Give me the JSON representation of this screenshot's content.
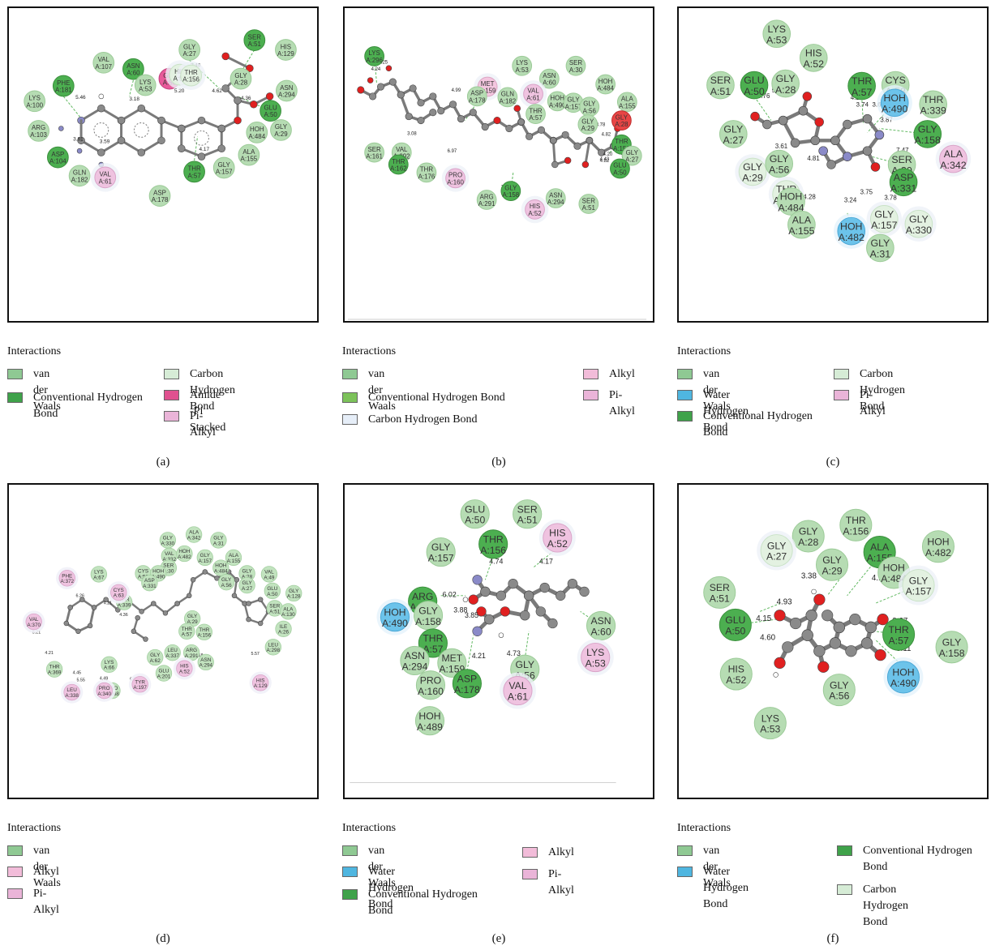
{
  "colors": {
    "van_der_waals": "#8fc993",
    "conventional_hbond": "#3fa24a",
    "carbon_hbond": "#d6ecd6",
    "water_hbond": "#4fb6e0",
    "amide_pi": "#e0508f",
    "pi_alkyl": "#eab4d8",
    "alkyl": "#f2bcd9",
    "unfavorable": "#e84a4a",
    "atom_c": "#8a8a8a",
    "atom_o": "#e02020",
    "atom_n": "#8a8ac8"
  },
  "legend_title": "Interactions",
  "legend_items": {
    "vdw": "van der Waals",
    "chb": "Carbon Hydrogen Bond",
    "conv": "Conventional Hydrogen Bond",
    "amide": "Amide -Pi Stacked",
    "pialkyl": "Pi-Alkyl",
    "alkyl": "Alkyl",
    "water": "Water Hydrogen Bond"
  },
  "captions": {
    "a": "(a)",
    "b": "(b)",
    "c": "(c)",
    "d": "(d)",
    "e": "(e)",
    "f": "(f)"
  },
  "panels": {
    "a": {
      "residues": [
        {
          "n": "SER",
          "i": "A:51",
          "t": "conv"
        },
        {
          "n": "HIS",
          "i": "A:129",
          "t": "vdw"
        },
        {
          "n": "GLY",
          "i": "A:27",
          "t": "vdw"
        },
        {
          "n": "GLY",
          "i": "A:28",
          "t": "vdw"
        },
        {
          "n": "ASN",
          "i": "A:294",
          "t": "vdw"
        },
        {
          "n": "GLU",
          "i": "A:50",
          "t": "conv"
        },
        {
          "n": "GLY",
          "i": "A:29",
          "t": "vdw"
        },
        {
          "n": "HOH",
          "i": "A:484",
          "t": "vdw"
        },
        {
          "n": "ALA",
          "i": "A:155",
          "t": "vdw"
        },
        {
          "n": "GLY",
          "i": "A:157",
          "t": "vdw"
        },
        {
          "n": "THR",
          "i": "A:57",
          "t": "conv"
        },
        {
          "n": "ASP",
          "i": "A:178",
          "t": "vdw"
        },
        {
          "n": "VAL",
          "i": "A:107",
          "t": "vdw"
        },
        {
          "n": "ASN",
          "i": "A:60",
          "t": "conv"
        },
        {
          "n": "LYS",
          "i": "A:53",
          "t": "vdw"
        },
        {
          "n": "GLY",
          "i": "A:56",
          "t": "amide"
        },
        {
          "n": "HIS",
          "i": "A:52",
          "t": "chb"
        },
        {
          "n": "THR",
          "i": "A:156",
          "t": "chb"
        },
        {
          "n": "PHE",
          "i": "A:181",
          "t": "conv"
        },
        {
          "n": "LYS",
          "i": "A:100",
          "t": "vdw"
        },
        {
          "n": "ARG",
          "i": "A:103",
          "t": "vdw"
        },
        {
          "n": "ASP",
          "i": "A:104",
          "t": "conv"
        },
        {
          "n": "GLN",
          "i": "A:182",
          "t": "vdw"
        },
        {
          "n": "VAL",
          "i": "A:61",
          "t": "pialkyl"
        }
      ],
      "distances": [
        "3.40",
        "4.62",
        "4.36",
        "5.20",
        "4.17",
        "5.46",
        "3.81",
        "3.59",
        "3.18"
      ]
    },
    "b": {
      "residues": [
        {
          "n": "LYS",
          "i": "A:296",
          "t": "conv"
        },
        {
          "n": "LYS",
          "i": "A:53",
          "t": "vdw"
        },
        {
          "n": "SER",
          "i": "A:30",
          "t": "vdw"
        },
        {
          "n": "ASN",
          "i": "A:60",
          "t": "vdw"
        },
        {
          "n": "MET",
          "i": "A:159",
          "t": "alkyl"
        },
        {
          "n": "ASP",
          "i": "A:178",
          "t": "vdw"
        },
        {
          "n": "GLN",
          "i": "A:182",
          "t": "vdw"
        },
        {
          "n": "VAL",
          "i": "A:61",
          "t": "pialkyl"
        },
        {
          "n": "HOH",
          "i": "A:484",
          "t": "vdw"
        },
        {
          "n": "HOH",
          "i": "A:490",
          "t": "vdw"
        },
        {
          "n": "GLY",
          "i": "A:157",
          "t": "vdw"
        },
        {
          "n": "GLY",
          "i": "A:56",
          "t": "vdw"
        },
        {
          "n": "ALA",
          "i": "A:155",
          "t": "vdw"
        },
        {
          "n": "GLY",
          "i": "A:28",
          "t": "unfav"
        },
        {
          "n": "THR",
          "i": "A:57",
          "t": "vdw"
        },
        {
          "n": "GLY",
          "i": "A:29",
          "t": "vdw"
        },
        {
          "n": "SER",
          "i": "A:161",
          "t": "vdw"
        },
        {
          "n": "VAL",
          "i": "A:292",
          "t": "vdw"
        },
        {
          "n": "THR",
          "i": "A:162",
          "t": "conv"
        },
        {
          "n": "THR",
          "i": "A:176",
          "t": "vdw"
        },
        {
          "n": "PRO",
          "i": "A:160",
          "t": "pialkyl"
        },
        {
          "n": "GLY",
          "i": "A:158",
          "t": "conv"
        },
        {
          "n": "ARG",
          "i": "A:291",
          "t": "vdw"
        },
        {
          "n": "HIS",
          "i": "A:52",
          "t": "pialkyl"
        },
        {
          "n": "ASN",
          "i": "A:294",
          "t": "vdw"
        },
        {
          "n": "SER",
          "i": "A:51",
          "t": "vdw"
        },
        {
          "n": "THR",
          "i": "A:156",
          "t": "conv"
        },
        {
          "n": "GLY",
          "i": "A:27",
          "t": "vdw"
        },
        {
          "n": "GLU",
          "i": "A:50",
          "t": "conv"
        }
      ],
      "distances": [
        "4.25",
        "4.24",
        "4.99",
        "3.08",
        "6.97",
        "4.82",
        "3.78",
        "3.93",
        "4.82",
        "4.43",
        "4.20"
      ]
    },
    "c": {
      "residues": [
        {
          "n": "LYS",
          "i": "A:53",
          "t": "vdw"
        },
        {
          "n": "HIS",
          "i": "A:52",
          "t": "vdw"
        },
        {
          "n": "SER",
          "i": "A:51",
          "t": "vdw"
        },
        {
          "n": "GLU",
          "i": "A:50",
          "t": "conv"
        },
        {
          "n": "GLY",
          "i": "A:28",
          "t": "vdw"
        },
        {
          "n": "THR",
          "i": "A:57",
          "t": "conv"
        },
        {
          "n": "CYS",
          "i": "A:58",
          "t": "vdw"
        },
        {
          "n": "HOH",
          "i": "A:490",
          "t": "water"
        },
        {
          "n": "THR",
          "i": "A:339",
          "t": "vdw"
        },
        {
          "n": "GLY",
          "i": "A:27",
          "t": "vdw"
        },
        {
          "n": "GLY",
          "i": "A:158",
          "t": "conv"
        },
        {
          "n": "ALA",
          "i": "A:342",
          "t": "pialkyl"
        },
        {
          "n": "GLY",
          "i": "A:29",
          "t": "chb"
        },
        {
          "n": "GLY",
          "i": "A:56",
          "t": "vdw"
        },
        {
          "n": "SER",
          "i": "A:30",
          "t": "vdw"
        },
        {
          "n": "ASP",
          "i": "A:331",
          "t": "conv"
        },
        {
          "n": "THR",
          "i": "A:156",
          "t": "chb"
        },
        {
          "n": "HOH",
          "i": "A:484",
          "t": "vdw"
        },
        {
          "n": "ALA",
          "i": "A:155",
          "t": "vdw"
        },
        {
          "n": "HOH",
          "i": "A:482",
          "t": "water"
        },
        {
          "n": "GLY",
          "i": "A:157",
          "t": "chb"
        },
        {
          "n": "GLY",
          "i": "A:330",
          "t": "chb"
        },
        {
          "n": "GLY",
          "i": "A:31",
          "t": "vdw"
        }
      ],
      "distances": [
        "3.76",
        "5.28",
        "2.38",
        "4.22",
        "3.74",
        "3.63",
        "3.87",
        "3.61",
        "4.81",
        "7.47",
        "4.05",
        "3.75",
        "3.78",
        "4.28",
        "3.24"
      ]
    },
    "d": {
      "residues": [
        {
          "n": "GLY",
          "i": "A:330"
        },
        {
          "n": "ALA",
          "i": "A:342"
        },
        {
          "n": "GLY",
          "i": "A:31"
        },
        {
          "n": "VAL",
          "i": "A:332"
        },
        {
          "n": "HOH",
          "i": "A:482"
        },
        {
          "n": "GLY",
          "i": "A:157"
        },
        {
          "n": "ALA",
          "i": "A:155"
        },
        {
          "n": "SER",
          "i": "A:30"
        },
        {
          "n": "HOH",
          "i": "A:484"
        },
        {
          "n": "LYS",
          "i": "A:67"
        },
        {
          "n": "CYS",
          "i": "A:58"
        },
        {
          "n": "HOH",
          "i": "A:490"
        },
        {
          "n": "ASP",
          "i": "A:331"
        },
        {
          "n": "GLY",
          "i": "A:28"
        },
        {
          "n": "VAL",
          "i": "A:49"
        },
        {
          "n": "GLY",
          "i": "A:56"
        },
        {
          "n": "GLY",
          "i": "A:27"
        },
        {
          "n": "GLU",
          "i": "A:50"
        },
        {
          "n": "GLY",
          "i": "A:128"
        },
        {
          "n": "THR",
          "i": "A:339"
        },
        {
          "n": "SER",
          "i": "A:51"
        },
        {
          "n": "ALA",
          "i": "A:130"
        },
        {
          "n": "GLY",
          "i": "A:29"
        },
        {
          "n": "THR",
          "i": "A:57"
        },
        {
          "n": "THR",
          "i": "A:156"
        },
        {
          "n": "ILE",
          "i": "A:26"
        },
        {
          "n": "LEU",
          "i": "A:298"
        },
        {
          "n": "LEU",
          "i": "A:337"
        },
        {
          "n": "ARG",
          "i": "A:291"
        },
        {
          "n": "GLY",
          "i": "A:62"
        },
        {
          "n": "ASN",
          "i": "A:294"
        },
        {
          "n": "LYS",
          "i": "A:66"
        },
        {
          "n": "THR",
          "i": "A:369"
        },
        {
          "n": "GLU",
          "i": "A:201"
        },
        {
          "n": "PRO",
          "i": "A:368"
        }
      ],
      "pi_alkyl": [
        {
          "n": "PHE",
          "i": "A:372"
        },
        {
          "n": "CYS",
          "i": "A:63"
        },
        {
          "n": "VAL",
          "i": "A:370"
        },
        {
          "n": "LEU",
          "i": "A:338"
        },
        {
          "n": "PRO",
          "i": "A:340"
        },
        {
          "n": "TYR",
          "i": "A:197"
        },
        {
          "n": "HIS",
          "i": "A:52"
        },
        {
          "n": "HIS",
          "i": "A:129"
        }
      ],
      "distances": [
        "6.26",
        "4.21",
        "4.36",
        "5.21",
        "4.21",
        "4.45",
        "5.55",
        "4.49",
        "6.03",
        "5.18",
        "5.57"
      ]
    },
    "e": {
      "residues": [
        {
          "n": "GLU",
          "i": "A:50",
          "t": "vdw"
        },
        {
          "n": "SER",
          "i": "A:51",
          "t": "vdw"
        },
        {
          "n": "HIS",
          "i": "A:52",
          "t": "pialkyl"
        },
        {
          "n": "GLY",
          "i": "A:157",
          "t": "vdw"
        },
        {
          "n": "THR",
          "i": "A:156",
          "t": "conv"
        },
        {
          "n": "ARG",
          "i": "A:291",
          "t": "conv"
        },
        {
          "n": "GLY",
          "i": "A:158",
          "t": "vdw"
        },
        {
          "n": "HOH",
          "i": "A:490",
          "t": "water"
        },
        {
          "n": "THR",
          "i": "A:57",
          "t": "conv"
        },
        {
          "n": "ASN",
          "i": "A:294",
          "t": "vdw"
        },
        {
          "n": "MET",
          "i": "A:159",
          "t": "vdw"
        },
        {
          "n": "ASN",
          "i": "A:60",
          "t": "vdw"
        },
        {
          "n": "LYS",
          "i": "A:53",
          "t": "pialkyl"
        },
        {
          "n": "GLY",
          "i": "A:56",
          "t": "vdw"
        },
        {
          "n": "PRO",
          "i": "A:160",
          "t": "vdw"
        },
        {
          "n": "ASP",
          "i": "A:178",
          "t": "conv"
        },
        {
          "n": "VAL",
          "i": "A:61",
          "t": "pialkyl"
        },
        {
          "n": "HOH",
          "i": "A:489",
          "t": "vdw"
        }
      ],
      "distances": [
        "4.74",
        "4.17",
        "6.02",
        "3.88",
        "3.85",
        "4.21",
        "4.73",
        "4.05"
      ]
    },
    "f": {
      "residues": [
        {
          "n": "THR",
          "i": "A:156",
          "t": "vdw"
        },
        {
          "n": "GLY",
          "i": "A:28",
          "t": "vdw"
        },
        {
          "n": "ALA",
          "i": "A:155",
          "t": "conv"
        },
        {
          "n": "HOH",
          "i": "A:482",
          "t": "vdw"
        },
        {
          "n": "GLY",
          "i": "A:27",
          "t": "chb"
        },
        {
          "n": "GLY",
          "i": "A:29",
          "t": "vdw"
        },
        {
          "n": "HOH",
          "i": "A:484",
          "t": "vdw"
        },
        {
          "n": "GLY",
          "i": "A:157",
          "t": "chb"
        },
        {
          "n": "SER",
          "i": "A:51",
          "t": "vdw"
        },
        {
          "n": "GLU",
          "i": "A:50",
          "t": "conv"
        },
        {
          "n": "THR",
          "i": "A:57",
          "t": "conv"
        },
        {
          "n": "GLY",
          "i": "A:158",
          "t": "vdw"
        },
        {
          "n": "HIS",
          "i": "A:52",
          "t": "vdw"
        },
        {
          "n": "GLY",
          "i": "A:56",
          "t": "vdw"
        },
        {
          "n": "HOH",
          "i": "A:490",
          "t": "water"
        },
        {
          "n": "LYS",
          "i": "A:53",
          "t": "vdw"
        }
      ],
      "distances": [
        "3.38",
        "4.10",
        "3.71",
        "4.93",
        "4.15",
        "4.60",
        "3.67",
        "3.11"
      ]
    }
  }
}
